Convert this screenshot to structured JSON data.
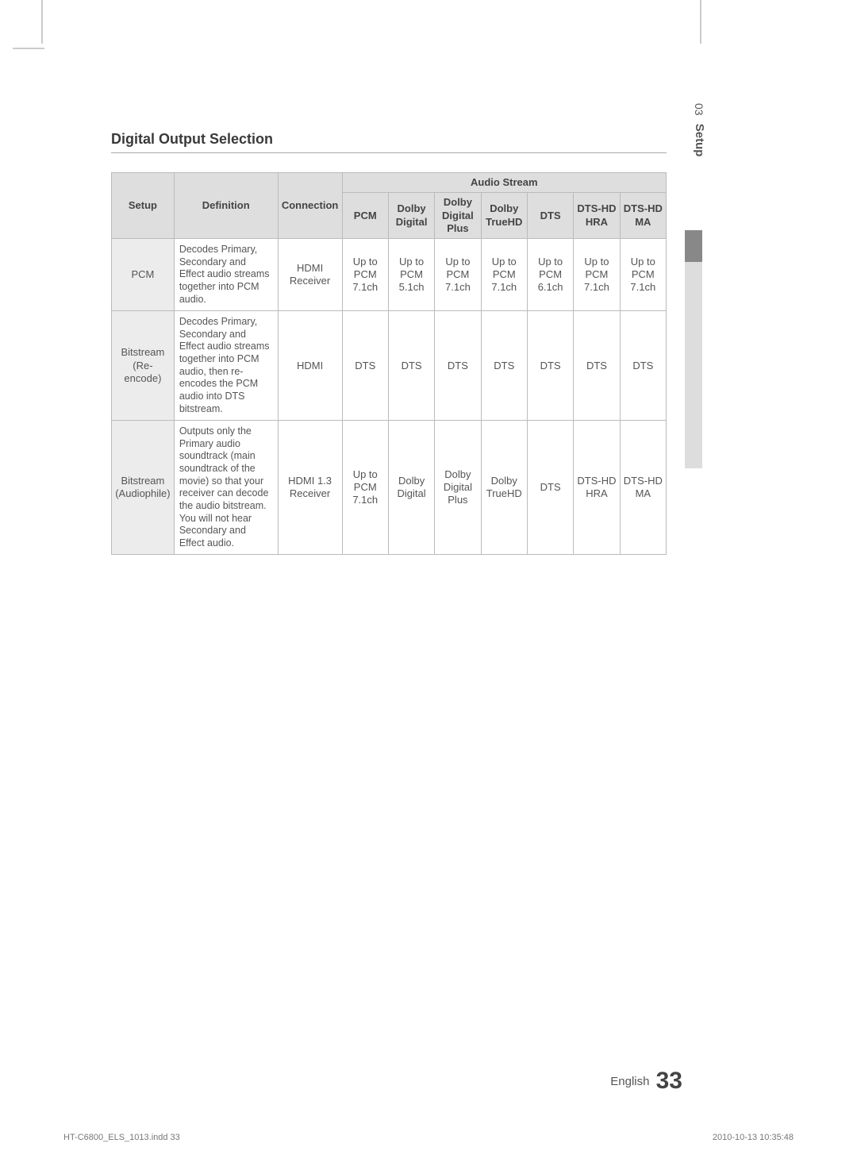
{
  "sideTab": {
    "chapter": "03",
    "title": "Setup"
  },
  "sectionTitle": "Digital Output Selection",
  "table": {
    "groupHeader": "Audio Stream",
    "headers": {
      "setup": "Setup",
      "definition": "Definition",
      "connection": "Connection",
      "pcm": "PCM",
      "dolbyDigital": "Dolby Digital",
      "dolbyDigitalPlus": "Dolby Digital Plus",
      "dolbyTrueHD": "Dolby TrueHD",
      "dts": "DTS",
      "dtsHdHra": "DTS-HD HRA",
      "dtsHdMa": "DTS-HD MA"
    },
    "rows": [
      {
        "setup": "PCM",
        "definition": "Decodes Primary, Secondary and Effect audio streams together into PCM audio.",
        "connection": "HDMI Receiver",
        "cells": [
          "Up to PCM 7.1ch",
          "Up to PCM 5.1ch",
          "Up to PCM 7.1ch",
          "Up to PCM 7.1ch",
          "Up to PCM 6.1ch",
          "Up to PCM 7.1ch",
          "Up to PCM 7.1ch"
        ]
      },
      {
        "setup": "Bitstream (Re-encode)",
        "definition": "Decodes Primary, Secondary and Effect audio streams together into PCM audio, then re-encodes the PCM audio into DTS bitstream.",
        "connection": "HDMI",
        "cells": [
          "DTS",
          "DTS",
          "DTS",
          "DTS",
          "DTS",
          "DTS",
          "DTS"
        ]
      },
      {
        "setup": "Bitstream (Audiophile)",
        "definition": "Outputs only the Primary audio soundtrack (main soundtrack of the movie) so that your receiver can decode the audio bitstream. You will not hear Secondary and Effect audio.",
        "connection": "HDMI 1.3 Receiver",
        "cells": [
          "Up to PCM 7.1ch",
          "Dolby Digital",
          "Dolby Digital Plus",
          "Dolby TrueHD",
          "DTS",
          "DTS-HD HRA",
          "DTS-HD MA"
        ]
      }
    ]
  },
  "footer": {
    "lang": "English",
    "page": "33"
  },
  "imprint": {
    "file": "HT-C6800_ELS_1013.indd   33",
    "stamp": "2010-10-13    10:35:48"
  }
}
